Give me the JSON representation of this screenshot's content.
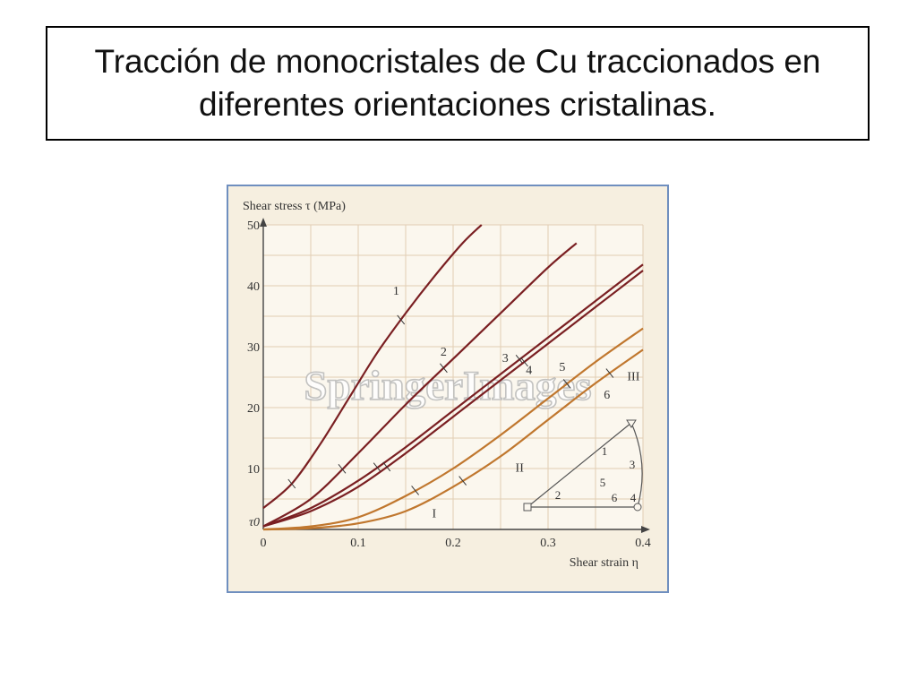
{
  "slide": {
    "title_line1": "Tracción de monocristales de Cu traccionados en",
    "title_line2": "diferentes orientaciones cristalinas."
  },
  "watermark": "SpringerImages",
  "colors": {
    "title_border": "#000000",
    "frame_border": "#6f8fbf",
    "plot_background": "#f6efe0",
    "grid": "#e2cdb3",
    "curve_dark": "#7a1f22",
    "curve_orange": "#c0772e"
  },
  "chart_data": {
    "type": "line",
    "title": "",
    "ylabel": "Shear stress τ (MPa)",
    "xlabel": "Shear strain η",
    "xlim": [
      0,
      0.4
    ],
    "ylim": [
      0,
      50
    ],
    "y_origin_label": "τ0",
    "xticks": [
      "0",
      "0.1",
      "0.2",
      "0.3",
      "0.4"
    ],
    "yticks": [
      "10",
      "20",
      "30",
      "40",
      "50"
    ],
    "xtick_values": [
      0,
      0.1,
      0.2,
      0.3,
      0.4
    ],
    "ytick_values": [
      10,
      20,
      30,
      40,
      50
    ],
    "grid": true,
    "series": [
      {
        "name": "1",
        "color": "curve_dark",
        "x": [
          0,
          0.03,
          0.06,
          0.09,
          0.12,
          0.15,
          0.18,
          0.21,
          0.23
        ],
        "y": [
          3.5,
          7.5,
          14,
          21.5,
          29,
          35.5,
          41.5,
          47,
          50
        ],
        "ticks": [
          0.03,
          0.145
        ]
      },
      {
        "name": "2",
        "color": "curve_dark",
        "x": [
          0,
          0.05,
          0.1,
          0.15,
          0.2,
          0.25,
          0.3,
          0.33
        ],
        "y": [
          0.5,
          5,
          12.5,
          20.5,
          28,
          35.5,
          43,
          47
        ],
        "ticks": [
          0.083,
          0.19
        ]
      },
      {
        "name": "3",
        "color": "curve_dark",
        "x": [
          0,
          0.05,
          0.1,
          0.15,
          0.2,
          0.25,
          0.3,
          0.35,
          0.4
        ],
        "y": [
          0.5,
          3.5,
          8,
          13.5,
          19.5,
          25.5,
          31.5,
          37.5,
          43.5
        ],
        "ticks": [
          0.12,
          0.27
        ]
      },
      {
        "name": "4",
        "color": "curve_dark",
        "x": [
          0,
          0.05,
          0.1,
          0.15,
          0.2,
          0.25,
          0.3,
          0.35,
          0.4
        ],
        "y": [
          0.5,
          3,
          7,
          12.5,
          18.5,
          24.5,
          30.5,
          36.5,
          42.5
        ],
        "ticks": [
          0.13,
          0.275
        ]
      },
      {
        "name": "5",
        "color": "curve_orange",
        "x": [
          0,
          0.05,
          0.1,
          0.15,
          0.2,
          0.25,
          0.3,
          0.35,
          0.4
        ],
        "y": [
          0,
          0.5,
          2,
          5.5,
          10,
          15.5,
          21.5,
          27.5,
          33
        ],
        "ticks": [
          0.16,
          0.32
        ]
      },
      {
        "name": "6",
        "color": "curve_orange",
        "x": [
          0,
          0.05,
          0.1,
          0.15,
          0.2,
          0.25,
          0.3,
          0.35,
          0.4
        ],
        "y": [
          0,
          0.2,
          1,
          3,
          7,
          12,
          18,
          24,
          29.5
        ],
        "ticks": [
          0.21,
          0.365
        ]
      }
    ],
    "annotations": [
      {
        "text": "1",
        "x": 0.14,
        "y": 38.5
      },
      {
        "text": "2",
        "x": 0.19,
        "y": 28.5
      },
      {
        "text": "3",
        "x": 0.255,
        "y": 27.5
      },
      {
        "text": "4",
        "x": 0.28,
        "y": 25.5
      },
      {
        "text": "5",
        "x": 0.315,
        "y": 26
      },
      {
        "text": "6",
        "x": 0.362,
        "y": 21.5
      },
      {
        "text": "I",
        "x": 0.18,
        "y": 2
      },
      {
        "text": "II",
        "x": 0.27,
        "y": 9.5
      },
      {
        "text": "III",
        "x": 0.39,
        "y": 24.5
      }
    ],
    "inset": {
      "labels": [
        "1",
        "2",
        "3",
        "4",
        "5",
        "6"
      ]
    }
  }
}
